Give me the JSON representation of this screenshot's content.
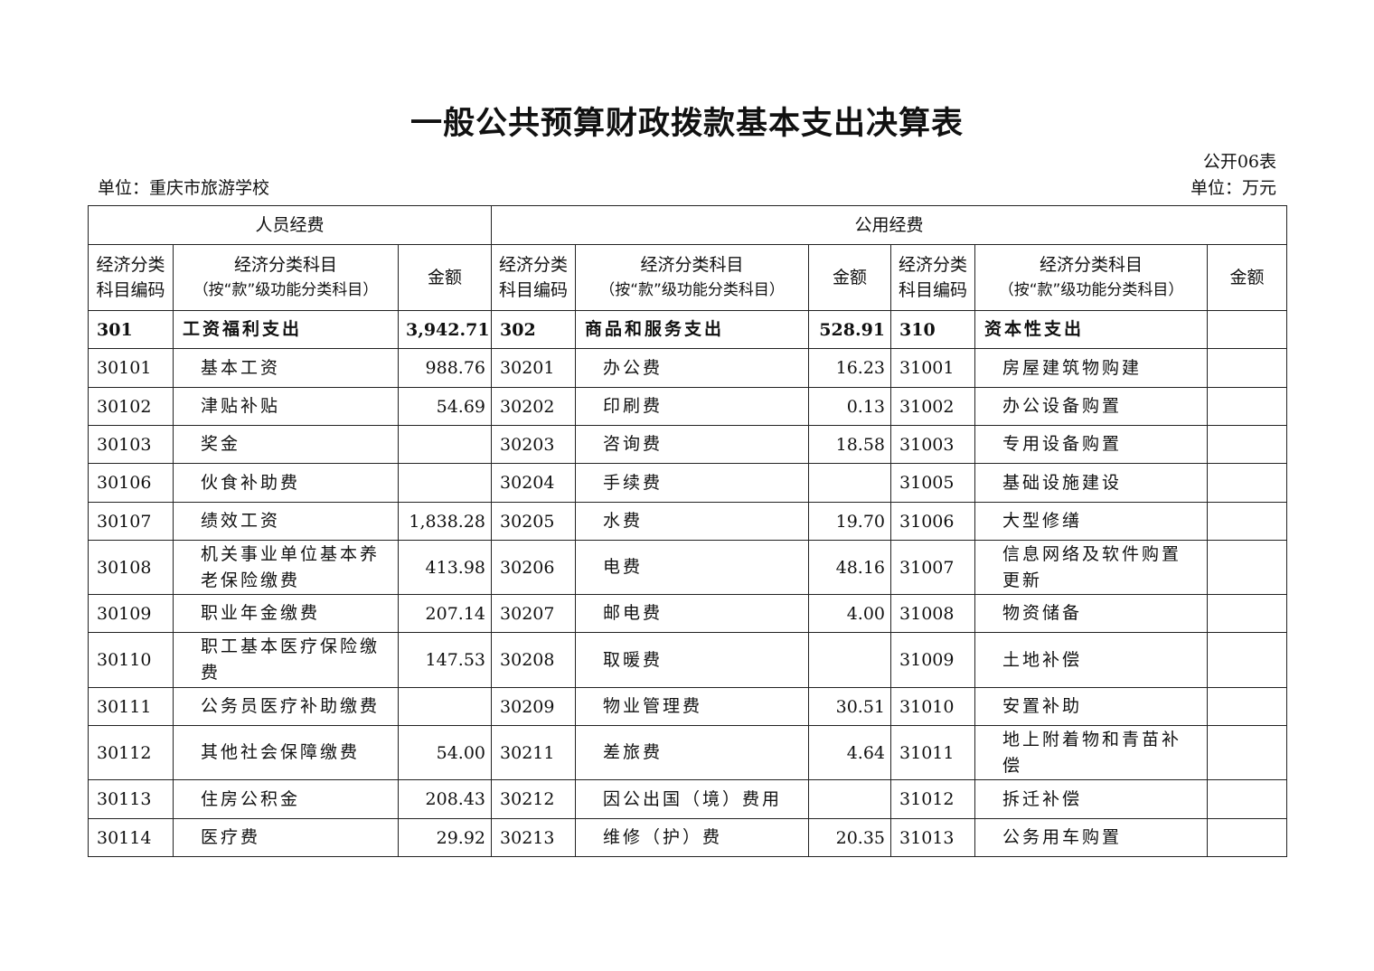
{
  "title": "一般公共预算财政拨款基本支出决算表",
  "form_no": "公开06表",
  "unit_org": "单位：重庆市旅游学校",
  "unit_money": "单位：万元",
  "groups": {
    "personnel": "人员经费",
    "public": "公用经费"
  },
  "headers": {
    "code": "经济分类科目编码",
    "name_line1": "经济分类科目",
    "name_line2": "（按“款”级功能分类科目）",
    "amount": "金额"
  },
  "rows": [
    [
      "301",
      "工资福利支出",
      "3,942.71",
      "302",
      "商品和服务支出",
      "528.91",
      "310",
      "资本性支出",
      ""
    ],
    [
      "30101",
      "基本工资",
      "988.76",
      "30201",
      "办公费",
      "16.23",
      "31001",
      "房屋建筑物购建",
      ""
    ],
    [
      "30102",
      "津贴补贴",
      "54.69",
      "30202",
      "印刷费",
      "0.13",
      "31002",
      "办公设备购置",
      ""
    ],
    [
      "30103",
      "奖金",
      "",
      "30203",
      "咨询费",
      "18.58",
      "31003",
      "专用设备购置",
      ""
    ],
    [
      "30106",
      "伙食补助费",
      "",
      "30204",
      "手续费",
      "",
      "31005",
      "基础设施建设",
      ""
    ],
    [
      "30107",
      "绩效工资",
      "1,838.28",
      "30205",
      "水费",
      "19.70",
      "31006",
      "大型修缮",
      ""
    ],
    [
      "30108",
      "机关事业单位基本养老保险缴费",
      "413.98",
      "30206",
      "电费",
      "48.16",
      "31007",
      "信息网络及软件购置更新",
      ""
    ],
    [
      "30109",
      "职业年金缴费",
      "207.14",
      "30207",
      "邮电费",
      "4.00",
      "31008",
      "物资储备",
      ""
    ],
    [
      "30110",
      "职工基本医疗保险缴费",
      "147.53",
      "30208",
      "取暖费",
      "",
      "31009",
      "土地补偿",
      ""
    ],
    [
      "30111",
      "公务员医疗补助缴费",
      "",
      "30209",
      "物业管理费",
      "30.51",
      "31010",
      "安置补助",
      ""
    ],
    [
      "30112",
      "其他社会保障缴费",
      "54.00",
      "30211",
      "差旅费",
      "4.64",
      "31011",
      "地上附着物和青苗补偿",
      ""
    ],
    [
      "30113",
      "住房公积金",
      "208.43",
      "30212",
      "因公出国（境）费用",
      "",
      "31012",
      "拆迁补偿",
      ""
    ],
    [
      "30114",
      "医疗费",
      "29.92",
      "30213",
      "维修（护）费",
      "20.35",
      "31013",
      "公务用车购置",
      ""
    ]
  ]
}
